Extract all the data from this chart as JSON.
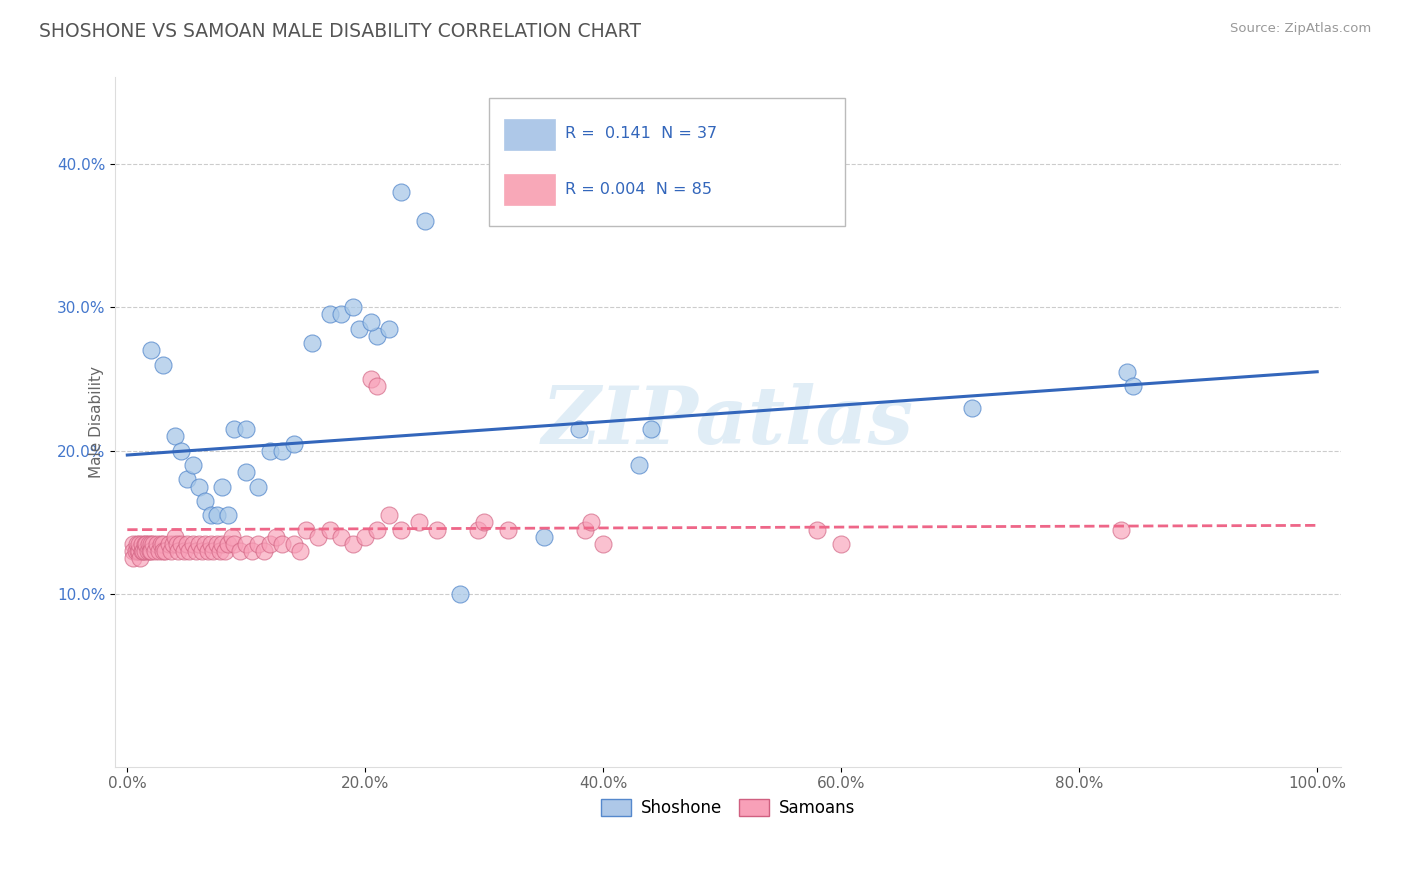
{
  "title": "SHOSHONE VS SAMOAN MALE DISABILITY CORRELATION CHART",
  "source": "Source: ZipAtlas.com",
  "ylabel": "Male Disability",
  "watermark": "ZIPatlas",
  "xlim": [
    -0.01,
    1.02
  ],
  "ylim": [
    -0.02,
    0.46
  ],
  "xticks": [
    0.0,
    0.2,
    0.4,
    0.6,
    0.8,
    1.0
  ],
  "xtick_labels": [
    "0.0%",
    "20.0%",
    "40.0%",
    "60.0%",
    "80.0%",
    "100.0%"
  ],
  "yticks": [
    0.1,
    0.2,
    0.3,
    0.4
  ],
  "ytick_labels": [
    "10.0%",
    "20.0%",
    "30.0%",
    "40.0%"
  ],
  "shoshone_color": "#a8c8e8",
  "shoshone_edge": "#5588cc",
  "samoan_color": "#f8a0b8",
  "samoan_edge": "#d06080",
  "shoshone_line_color": "#3366bb",
  "samoan_line_color": "#ee6688",
  "shoshone_x": [
    0.02,
    0.03,
    0.04,
    0.045,
    0.05,
    0.055,
    0.06,
    0.065,
    0.07,
    0.075,
    0.08,
    0.085,
    0.09,
    0.1,
    0.1,
    0.11,
    0.12,
    0.13,
    0.14,
    0.155,
    0.17,
    0.18,
    0.195,
    0.21,
    0.22,
    0.23,
    0.25,
    0.28,
    0.35,
    0.38,
    0.43,
    0.44,
    0.71,
    0.84,
    0.845,
    0.19,
    0.205
  ],
  "shoshone_y": [
    0.27,
    0.26,
    0.21,
    0.2,
    0.18,
    0.19,
    0.175,
    0.165,
    0.155,
    0.155,
    0.175,
    0.155,
    0.215,
    0.215,
    0.185,
    0.175,
    0.2,
    0.2,
    0.205,
    0.275,
    0.295,
    0.295,
    0.285,
    0.28,
    0.285,
    0.38,
    0.36,
    0.1,
    0.14,
    0.215,
    0.19,
    0.215,
    0.23,
    0.255,
    0.245,
    0.3,
    0.29
  ],
  "samoan_x": [
    0.005,
    0.005,
    0.005,
    0.007,
    0.008,
    0.009,
    0.01,
    0.01,
    0.011,
    0.012,
    0.012,
    0.013,
    0.015,
    0.015,
    0.016,
    0.017,
    0.018,
    0.019,
    0.02,
    0.02,
    0.022,
    0.023,
    0.025,
    0.027,
    0.028,
    0.03,
    0.03,
    0.032,
    0.035,
    0.037,
    0.038,
    0.04,
    0.042,
    0.043,
    0.045,
    0.048,
    0.05,
    0.052,
    0.055,
    0.058,
    0.06,
    0.063,
    0.065,
    0.068,
    0.07,
    0.072,
    0.075,
    0.078,
    0.08,
    0.082,
    0.085,
    0.088,
    0.09,
    0.095,
    0.1,
    0.105,
    0.11,
    0.115,
    0.12,
    0.125,
    0.13,
    0.14,
    0.145,
    0.15,
    0.16,
    0.17,
    0.18,
    0.19,
    0.2,
    0.21,
    0.22,
    0.23,
    0.245,
    0.26,
    0.295,
    0.3,
    0.32,
    0.385,
    0.39,
    0.4,
    0.58,
    0.6,
    0.835,
    0.205,
    0.21
  ],
  "samoan_y": [
    0.135,
    0.13,
    0.125,
    0.13,
    0.135,
    0.13,
    0.13,
    0.135,
    0.125,
    0.13,
    0.135,
    0.13,
    0.135,
    0.13,
    0.135,
    0.13,
    0.135,
    0.13,
    0.135,
    0.13,
    0.135,
    0.13,
    0.135,
    0.13,
    0.135,
    0.135,
    0.13,
    0.13,
    0.135,
    0.13,
    0.135,
    0.14,
    0.135,
    0.13,
    0.135,
    0.13,
    0.135,
    0.13,
    0.135,
    0.13,
    0.135,
    0.13,
    0.135,
    0.13,
    0.135,
    0.13,
    0.135,
    0.13,
    0.135,
    0.13,
    0.135,
    0.14,
    0.135,
    0.13,
    0.135,
    0.13,
    0.135,
    0.13,
    0.135,
    0.14,
    0.135,
    0.135,
    0.13,
    0.145,
    0.14,
    0.145,
    0.14,
    0.135,
    0.14,
    0.145,
    0.155,
    0.145,
    0.15,
    0.145,
    0.145,
    0.15,
    0.145,
    0.145,
    0.15,
    0.135,
    0.145,
    0.135,
    0.145,
    0.25,
    0.245
  ],
  "blue_line_x": [
    0.0,
    1.0
  ],
  "blue_line_y": [
    0.197,
    0.255
  ],
  "pink_line_x": [
    0.0,
    1.0
  ],
  "pink_line_y": [
    0.145,
    0.148
  ]
}
